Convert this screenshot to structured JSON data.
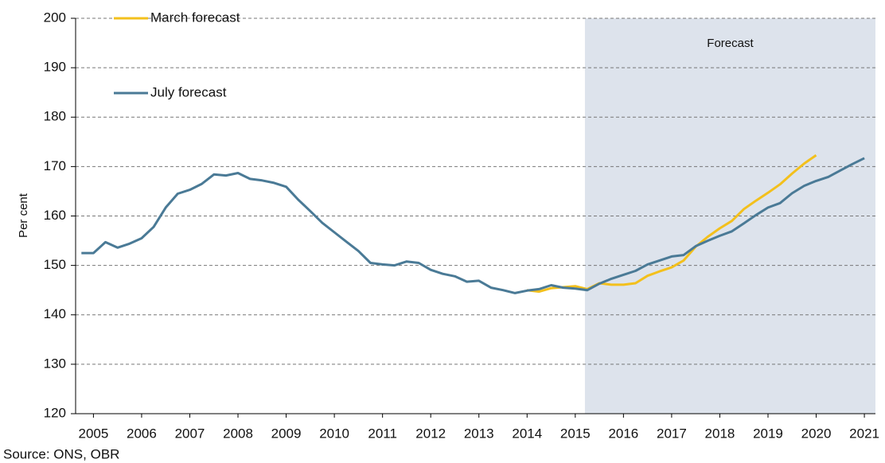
{
  "chart_data": {
    "type": "line",
    "y_label": "Per cent",
    "source": "Source: ONS, OBR",
    "forecast_region": {
      "label": "Forecast",
      "xlim": [
        2015.7,
        2021.73
      ]
    },
    "x": [
      2005.25,
      2005.5,
      2005.75,
      2006,
      2006.25,
      2006.5,
      2006.75,
      2007,
      2007.25,
      2007.5,
      2007.75,
      2008,
      2008.25,
      2008.5,
      2008.75,
      2009,
      2009.25,
      2009.5,
      2009.75,
      2010,
      2010.25,
      2010.5,
      2010.75,
      2011,
      2011.25,
      2011.5,
      2011.75,
      2012,
      2012.25,
      2012.5,
      2012.75,
      2013,
      2013.25,
      2013.5,
      2013.75,
      2014,
      2014.25,
      2014.5,
      2014.75,
      2015,
      2015.25,
      2015.5,
      2015.75,
      2016,
      2016.25,
      2016.5,
      2016.75,
      2017,
      2017.25,
      2017.5,
      2017.75,
      2018,
      2018.25,
      2018.5,
      2018.75,
      2019,
      2019.25,
      2019.5,
      2019.75,
      2020,
      2020.25,
      2020.5,
      2020.75,
      2021,
      2021.25,
      2021.5
    ],
    "series": [
      {
        "name": "March forecast",
        "color": "#f3c01c",
        "values": [
          null,
          null,
          null,
          null,
          null,
          null,
          null,
          null,
          null,
          null,
          null,
          null,
          null,
          null,
          null,
          null,
          null,
          null,
          null,
          null,
          null,
          null,
          null,
          null,
          null,
          null,
          null,
          null,
          null,
          null,
          null,
          null,
          null,
          null,
          null,
          null,
          null,
          145.0,
          144.7,
          145.4,
          145.6,
          145.8,
          145.2,
          146.4,
          146.1,
          146.1,
          146.4,
          147.9,
          148.8,
          149.6,
          151.0,
          153.8,
          155.8,
          157.5,
          159.0,
          161.4,
          163.1,
          164.7,
          166.4,
          168.6,
          170.6,
          172.3,
          null,
          null,
          null,
          null
        ]
      },
      {
        "name": "July forecast",
        "color": "#4a7a96",
        "values": [
          152.5,
          152.5,
          154.7,
          153.6,
          154.4,
          155.5,
          157.8,
          161.7,
          164.5,
          165.3,
          166.5,
          168.4,
          168.2,
          168.7,
          167.5,
          167.2,
          166.7,
          165.9,
          163.3,
          161.0,
          158.6,
          156.7,
          154.8,
          152.9,
          150.5,
          150.2,
          150.0,
          150.8,
          150.5,
          149.1,
          148.3,
          147.8,
          146.7,
          146.9,
          145.5,
          145.0,
          144.4,
          144.9,
          145.2,
          146.0,
          145.5,
          145.3,
          145.0,
          146.3,
          147.3,
          148.1,
          148.9,
          150.2,
          151.0,
          151.8,
          152.1,
          153.9,
          155.0,
          156.0,
          156.9,
          158.5,
          160.2,
          161.7,
          162.6,
          164.6,
          166.1,
          167.1,
          167.9,
          169.2,
          170.5,
          171.7
        ]
      }
    ],
    "xlim": [
      2005.13,
      2021.73
    ],
    "xticks": [
      {
        "value": 2005.5,
        "label": "2005"
      },
      {
        "value": 2006.5,
        "label": "2006"
      },
      {
        "value": 2007.5,
        "label": "2007"
      },
      {
        "value": 2008.5,
        "label": "2008"
      },
      {
        "value": 2009.5,
        "label": "2009"
      },
      {
        "value": 2010.5,
        "label": "2010"
      },
      {
        "value": 2011.5,
        "label": "2011"
      },
      {
        "value": 2012.5,
        "label": "2012"
      },
      {
        "value": 2013.5,
        "label": "2013"
      },
      {
        "value": 2014.5,
        "label": "2014"
      },
      {
        "value": 2015.5,
        "label": "2015"
      },
      {
        "value": 2016.5,
        "label": "2016"
      },
      {
        "value": 2017.5,
        "label": "2017"
      },
      {
        "value": 2018.5,
        "label": "2018"
      },
      {
        "value": 2019.5,
        "label": "2019"
      },
      {
        "value": 2020.5,
        "label": "2020"
      },
      {
        "value": 2021.5,
        "label": "2021"
      }
    ],
    "ylim": [
      120,
      200
    ],
    "yticks": [
      120,
      130,
      140,
      150,
      160,
      170,
      180,
      190,
      200
    ],
    "grid": true
  }
}
